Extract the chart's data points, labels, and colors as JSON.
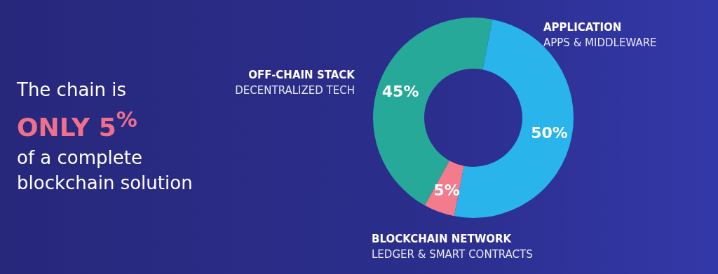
{
  "chart_data": {
    "type": "donut",
    "title": "The chain is",
    "subtitle": "ONLY 5$^{%}$",
    "categories": [
      "APPLICATION",
      "BLOCKCHAIN NETWORK",
      "OFF-CHAIN STACK"
    ],
    "values": [
      50,
      5,
      45
    ],
    "colors": [
      "#29b4ec",
      "#f27c8c",
      "#27a99a"
    ],
    "value_labels": [
      "50%",
      "5%",
      "45%"
    ],
    "annotations": [
      "of a complete blockchain solution",
      "APPS & MIDDLEWARE",
      "LEDGER & SMART CONTRACTS",
      "DECENTRALIZED TECH"
    ],
    "legend": false
  }
}
